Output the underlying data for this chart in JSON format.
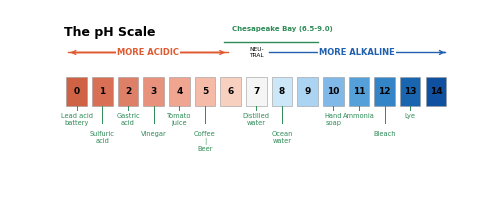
{
  "title": "The pH Scale",
  "title_fontsize": 9,
  "chesapeake_label": "Chesapeake Bay (6.5-9.0)",
  "chesapeake_color": "#2e8b57",
  "acidic_label": "MORE ACIDIC",
  "alkaline_label": "MORE ALKALINE",
  "neutral_label": "NEU-\nTRAL",
  "arrow_color_acidic": "#e05a30",
  "arrow_color_alkaline": "#2060b0",
  "label_color_acidic": "#e05a30",
  "label_color_alkaline": "#2060b0",
  "ph_values": [
    0,
    1,
    2,
    3,
    4,
    5,
    6,
    7,
    8,
    9,
    10,
    11,
    12,
    13,
    14
  ],
  "bar_colors": [
    "#cf6244",
    "#d97055",
    "#de8068",
    "#e8917c",
    "#f0a590",
    "#f5bba8",
    "#f8d0c0",
    "#f5f5f5",
    "#cce8f8",
    "#aad4f2",
    "#80b8e8",
    "#55a0d8",
    "#3385c8",
    "#1a65b0",
    "#1050a0"
  ],
  "bg_color": "#ffffff",
  "bar_number_fontsize": 6.5,
  "annotation_fontsize": 4.8,
  "annotation_color": "#2e8b57",
  "annotations": [
    {
      "ph": 0,
      "text": "Lead acid\nbattery",
      "row": 0
    },
    {
      "ph": 1,
      "text": "Sulfuric\nacid",
      "row": 1
    },
    {
      "ph": 2,
      "text": "Gastric\nacid",
      "row": 0
    },
    {
      "ph": 3,
      "text": "Vinegar",
      "row": 1
    },
    {
      "ph": 4,
      "text": "Tomato\njuice",
      "row": 0
    },
    {
      "ph": 5,
      "text": "Coffee\n|\nBeer",
      "row": 1
    },
    {
      "ph": 7,
      "text": "Distilled\nwater",
      "row": 0
    },
    {
      "ph": 8,
      "text": "Ocean\nwater",
      "row": 1
    },
    {
      "ph": 10,
      "text": "Hand\nsoap",
      "row": 0
    },
    {
      "ph": 11,
      "text": "Ammonia",
      "row": 0
    },
    {
      "ph": 12,
      "text": "Bleach",
      "row": 1
    },
    {
      "ph": 13,
      "text": "Lye",
      "row": 0
    }
  ]
}
